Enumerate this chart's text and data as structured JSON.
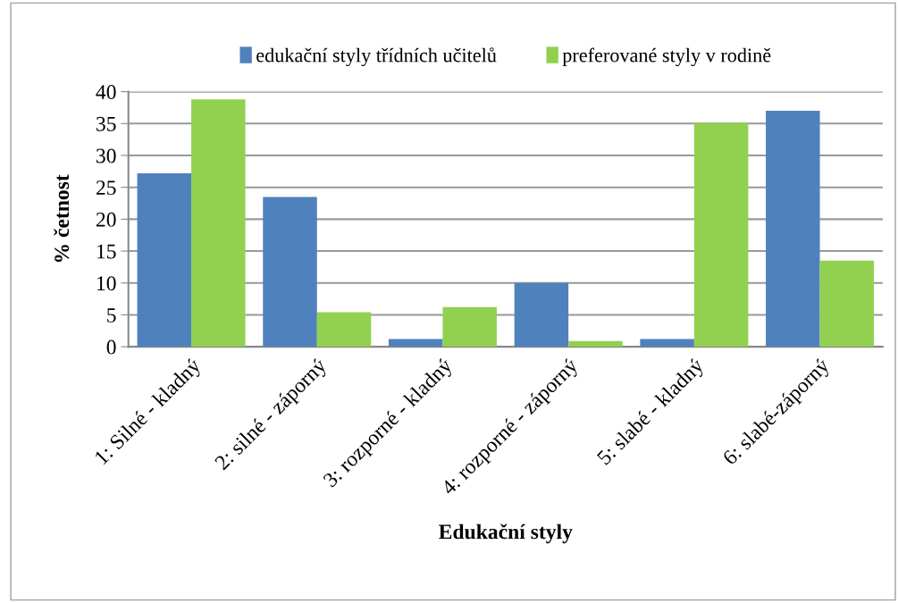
{
  "chart_data": {
    "type": "bar",
    "xlabel": "Edukační styly",
    "ylabel": "% četnost",
    "categories": [
      "1: Silné - kladný",
      "2: silné - záporný",
      "3: rozporné - kladný",
      "4: rozporné - záporný",
      "5: slabé - kladný",
      "6: slabé-záporný"
    ],
    "series": [
      {
        "name": "edukační styly třídních učitelů",
        "color": "#4f81bd",
        "values": [
          27.2,
          23.5,
          1.2,
          10.0,
          1.2,
          37.0
        ]
      },
      {
        "name": "preferované styly v rodině",
        "color": "#92d050",
        "values": [
          38.8,
          5.4,
          6.2,
          0.9,
          35.1,
          13.5
        ]
      }
    ],
    "ylim": [
      0,
      40
    ],
    "yticks": [
      0,
      5,
      10,
      15,
      20,
      25,
      30,
      35,
      40
    ],
    "grid": "y",
    "legend": "top"
  }
}
